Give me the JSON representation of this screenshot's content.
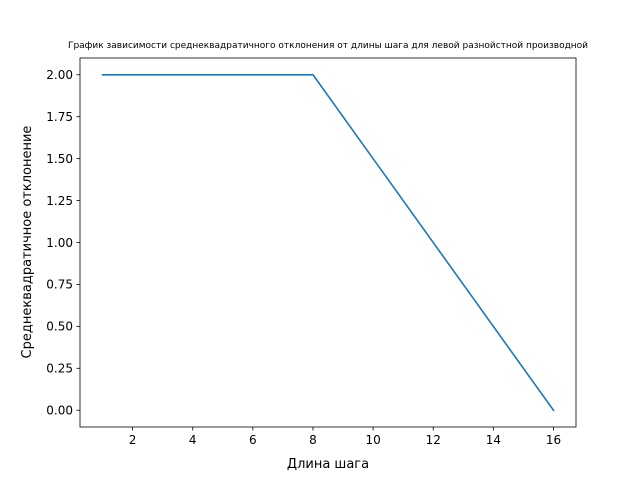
{
  "chart_data": {
    "type": "line",
    "title": "График зависимости среднеквадратичного отклонения от длины шага для левой разнойстной производной",
    "xlabel": "Длина шага",
    "ylabel": "Среднеквадратичное отклонение",
    "xlim": [
      0.25,
      16.75
    ],
    "ylim": [
      -0.1,
      2.1
    ],
    "x_ticks": [
      2,
      4,
      6,
      8,
      10,
      12,
      14,
      16
    ],
    "x_tick_labels": [
      "2",
      "4",
      "6",
      "8",
      "10",
      "12",
      "14",
      "16"
    ],
    "y_ticks": [
      0,
      0.25,
      0.5,
      0.75,
      1.0,
      1.25,
      1.5,
      1.75,
      2.0
    ],
    "y_tick_labels": [
      "0.00",
      "0.25",
      "0.50",
      "0.75",
      "1.00",
      "1.25",
      "1.50",
      "1.75",
      "2.00"
    ],
    "grid": false,
    "series": [
      {
        "color": "#1f77b4",
        "x": [
          1,
          8,
          16
        ],
        "y": [
          2.0,
          2.0,
          0.0
        ]
      }
    ]
  }
}
